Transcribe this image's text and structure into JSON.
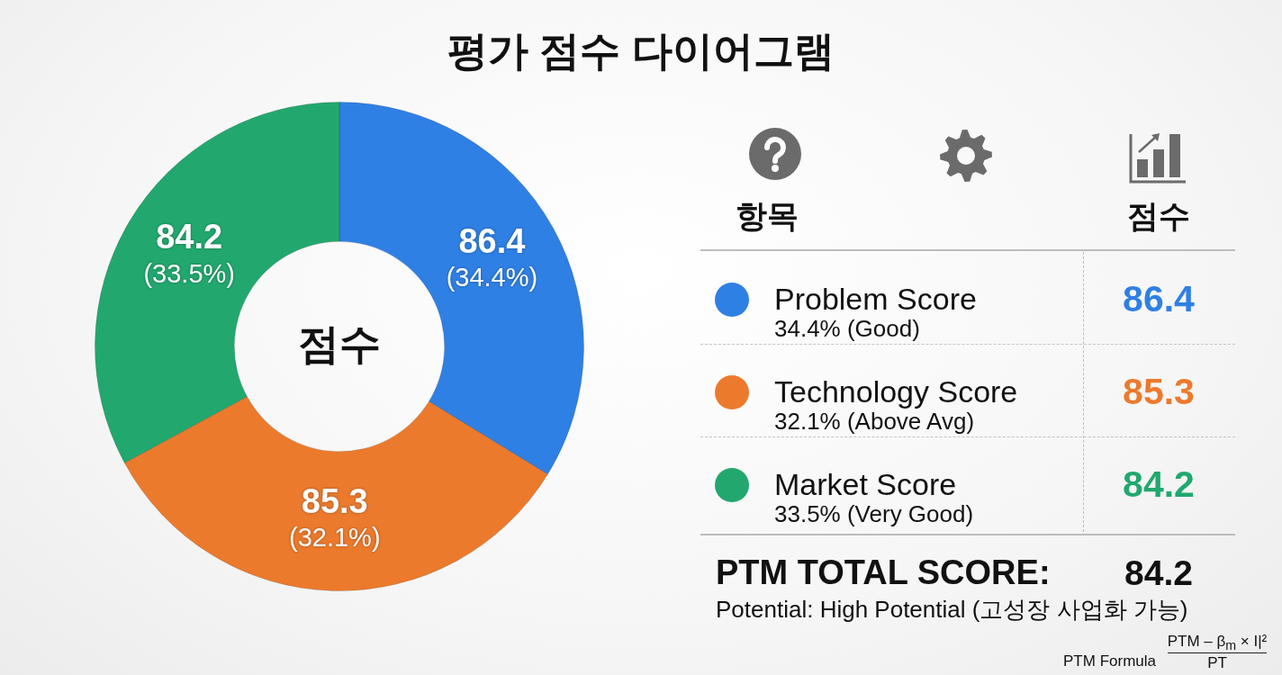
{
  "chart_data": {
    "type": "donut",
    "title": "평가 점수 다이어그램",
    "categories": [
      "Problem Score",
      "Technology Score",
      "Market Score"
    ],
    "values": [
      86.4,
      85.3,
      84.2
    ],
    "colors": [
      "#2f80e4",
      "#ec7a2c",
      "#22a86e"
    ],
    "value_labels": [
      "86.4 (34.4%)",
      "85.3 (32.1%)",
      "84.2 (33.5%)"
    ],
    "legend": "right",
    "legend_title": "항목",
    "annotations": [
      "점수",
      "점수",
      "34.4% (Good)",
      "32.1% (Above Avg)",
      "33.5% (Very Good)",
      "86.4",
      "85.3",
      "84.2",
      "PTM TOTAL SCORE:",
      "84.2",
      "Potential: High Potential (고성장 사업화 가능)",
      "PTM Formula",
      "PTM – β$_{m}$ × I|²",
      "PT"
    ]
  }
}
